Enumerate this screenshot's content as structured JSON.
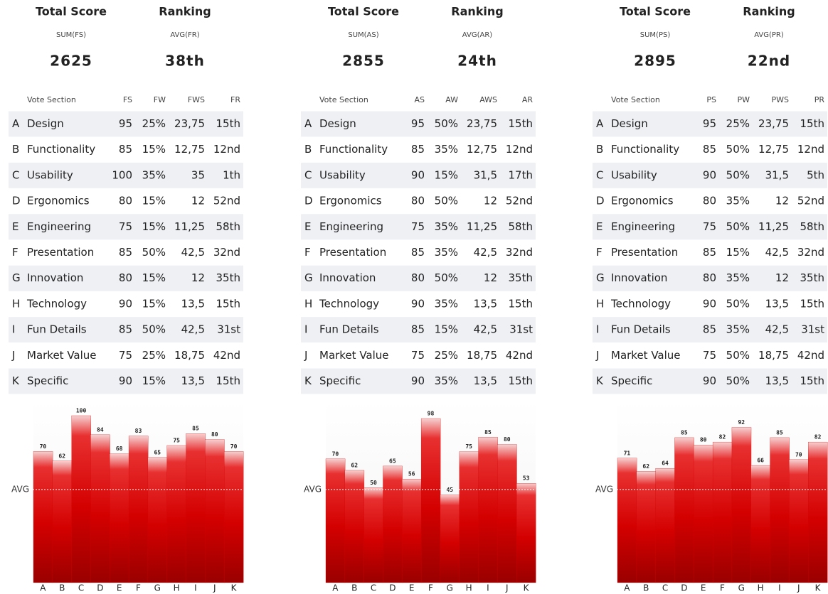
{
  "panels": [
    {
      "summary": {
        "score_title": "Total Score",
        "score_formula": "SUM(FS)",
        "score_value": "2625",
        "rank_title": "Ranking",
        "rank_formula": "AVG(FR)",
        "rank_value": "38th"
      },
      "table": {
        "header": [
          "Vote Section",
          "FS",
          "FW",
          "FWS",
          "FR"
        ],
        "rows": [
          [
            "A",
            "Design",
            "95",
            "25%",
            "23,75",
            "15th"
          ],
          [
            "B",
            "Functionality",
            "85",
            "15%",
            "12,75",
            "12nd"
          ],
          [
            "C",
            "Usability",
            "100",
            "35%",
            "35",
            "1th"
          ],
          [
            "D",
            "Ergonomics",
            "80",
            "15%",
            "12",
            "52nd"
          ],
          [
            "E",
            "Engineering",
            "75",
            "15%",
            "11,25",
            "58th"
          ],
          [
            "F",
            "Presentation",
            "85",
            "50%",
            "42,5",
            "32nd"
          ],
          [
            "G",
            "Innovation",
            "80",
            "15%",
            "12",
            "35th"
          ],
          [
            "H",
            "Technology",
            "90",
            "15%",
            "13,5",
            "15th"
          ],
          [
            "I",
            "Fun Details",
            "85",
            "50%",
            "42,5",
            "31st"
          ],
          [
            "J",
            "Market Value",
            "75",
            "25%",
            "18,75",
            "42nd"
          ],
          [
            "K",
            "Specific",
            "90",
            "15%",
            "13,5",
            "15th"
          ]
        ]
      }
    },
    {
      "summary": {
        "score_title": "Total Score",
        "score_formula": "SUM(AS)",
        "score_value": "2855",
        "rank_title": "Ranking",
        "rank_formula": "AVG(AR)",
        "rank_value": "24th"
      },
      "table": {
        "header": [
          "Vote Section",
          "AS",
          "AW",
          "AWS",
          "AR"
        ],
        "rows": [
          [
            "A",
            "Design",
            "95",
            "50%",
            "23,75",
            "15th"
          ],
          [
            "B",
            "Functionality",
            "85",
            "35%",
            "12,75",
            "12nd"
          ],
          [
            "C",
            "Usability",
            "90",
            "15%",
            "31,5",
            "17th"
          ],
          [
            "D",
            "Ergonomics",
            "80",
            "50%",
            "12",
            "52nd"
          ],
          [
            "E",
            "Engineering",
            "75",
            "35%",
            "11,25",
            "58th"
          ],
          [
            "F",
            "Presentation",
            "85",
            "35%",
            "42,5",
            "32nd"
          ],
          [
            "G",
            "Innovation",
            "80",
            "50%",
            "12",
            "35th"
          ],
          [
            "H",
            "Technology",
            "90",
            "35%",
            "13,5",
            "15th"
          ],
          [
            "I",
            "Fun Details",
            "85",
            "15%",
            "42,5",
            "31st"
          ],
          [
            "J",
            "Market Value",
            "75",
            "25%",
            "18,75",
            "42nd"
          ],
          [
            "K",
            "Specific",
            "90",
            "35%",
            "13,5",
            "15th"
          ]
        ]
      }
    },
    {
      "summary": {
        "score_title": "Total Score",
        "score_formula": "SUM(PS)",
        "score_value": "2895",
        "rank_title": "Ranking",
        "rank_formula": "AVG(PR)",
        "rank_value": "22nd"
      },
      "table": {
        "header": [
          "Vote Section",
          "PS",
          "PW",
          "PWS",
          "PR"
        ],
        "rows": [
          [
            "A",
            "Design",
            "95",
            "25%",
            "23,75",
            "15th"
          ],
          [
            "B",
            "Functionality",
            "85",
            "50%",
            "12,75",
            "12nd"
          ],
          [
            "C",
            "Usability",
            "90",
            "50%",
            "31,5",
            "5th"
          ],
          [
            "D",
            "Ergonomics",
            "80",
            "35%",
            "12",
            "52nd"
          ],
          [
            "E",
            "Engineering",
            "75",
            "50%",
            "11,25",
            "58th"
          ],
          [
            "F",
            "Presentation",
            "85",
            "15%",
            "42,5",
            "32nd"
          ],
          [
            "G",
            "Innovation",
            "80",
            "35%",
            "12",
            "35th"
          ],
          [
            "H",
            "Technology",
            "90",
            "50%",
            "13,5",
            "15th"
          ],
          [
            "I",
            "Fun Details",
            "85",
            "35%",
            "42,5",
            "31st"
          ],
          [
            "J",
            "Market Value",
            "75",
            "50%",
            "18,75",
            "42nd"
          ],
          [
            "K",
            "Specific",
            "90",
            "50%",
            "13,5",
            "15th"
          ]
        ]
      }
    }
  ],
  "chart_data": [
    {
      "type": "bar",
      "categories": [
        "A",
        "B",
        "C",
        "D",
        "E",
        "F",
        "G",
        "H",
        "I",
        "J",
        "K"
      ],
      "values": [
        70,
        62,
        100,
        84,
        68,
        83,
        65,
        75,
        85,
        80,
        70
      ],
      "color": "#d40000",
      "ylim": [
        -40,
        100
      ],
      "avg_label": "AVG"
    },
    {
      "type": "bar",
      "categories": [
        "A",
        "B",
        "C",
        "D",
        "E",
        "F",
        "G",
        "H",
        "I",
        "J",
        "K"
      ],
      "values": [
        70,
        62,
        50,
        65,
        56,
        98,
        45,
        75,
        85,
        80,
        53
      ],
      "color": "#d40000",
      "ylim": [
        -16,
        100
      ],
      "avg_label": "AVG"
    },
    {
      "type": "bar",
      "categories": [
        "A",
        "B",
        "C",
        "D",
        "E",
        "F",
        "G",
        "H",
        "I",
        "J",
        "K"
      ],
      "values": [
        71,
        62,
        64,
        85,
        80,
        82,
        92,
        66,
        85,
        70,
        82
      ],
      "color": "#d40000",
      "ylim": [
        -14,
        100
      ],
      "avg_label": "AVG"
    }
  ]
}
